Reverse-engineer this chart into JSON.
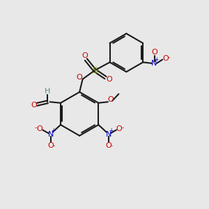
{
  "bg": "#e8e8e8",
  "bond_color": "#1a1a1a",
  "o_color": "#cc0000",
  "n_color": "#0000cc",
  "s_color": "#999900",
  "h_color": "#5a8a8a",
  "figsize": [
    3.0,
    3.0
  ],
  "dpi": 100,
  "xlim": [
    0,
    10
  ],
  "ylim": [
    0,
    10
  ]
}
